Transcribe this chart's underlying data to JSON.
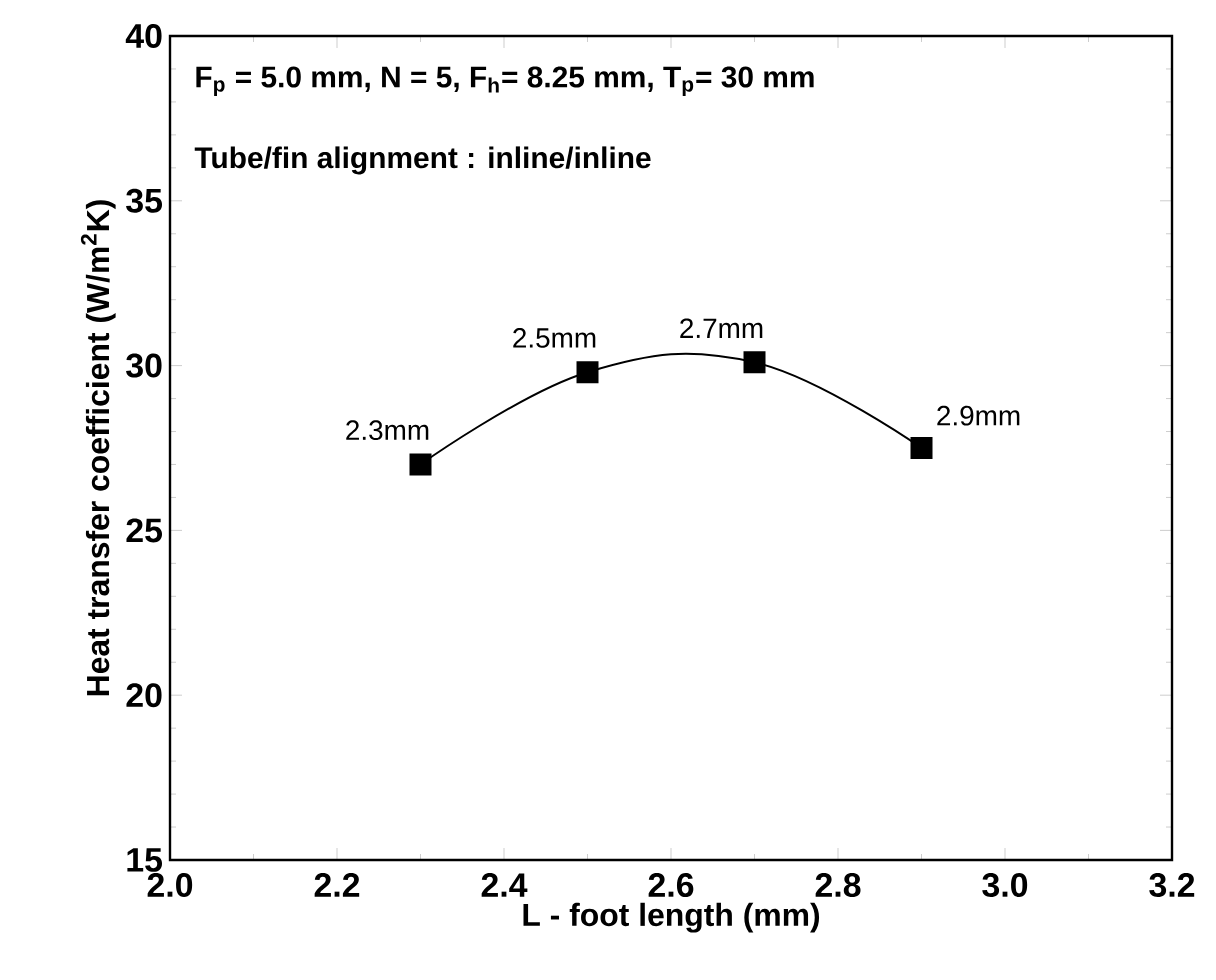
{
  "chart_data": {
    "type": "line",
    "xlabel": "L - foot length (mm)",
    "ylabel": "Heat transfer coefficient (W/m$^{2}$K)",
    "x": [
      2.3,
      2.5,
      2.7,
      2.9
    ],
    "series": [
      {
        "color": "#000000",
        "values": [
          27.0,
          29.8,
          30.1,
          27.5
        ]
      }
    ],
    "xlim": [
      2.0,
      3.2
    ],
    "xticks": [
      {
        "value": 2.0,
        "label": "2.0"
      },
      2.2,
      2.4,
      2.6,
      2.8,
      {
        "value": 3.0,
        "label": "3.0"
      },
      3.2
    ],
    "ylim": [
      15,
      40
    ],
    "yticks": [
      15,
      20,
      25,
      30,
      35,
      40
    ],
    "marker": "square",
    "line_style": "solid",
    "grid": false,
    "annotations": [
      "F$_{p}$ = 5.0 mm, N = 5, F$_{h}$= 8.25 mm, T$_{p}$= 30 mm",
      "Tube/fin alignment : inline/inline",
      {
        "text": "2.3mm",
        "x": 2.3,
        "y": 27.0
      },
      {
        "text": "2.5mm",
        "x": 2.5,
        "y": 29.8
      },
      {
        "text": "2.7mm",
        "x": 2.7,
        "y": 30.1
      },
      {
        "text": "2.9mm",
        "x": 2.9,
        "y": 27.5
      }
    ]
  }
}
